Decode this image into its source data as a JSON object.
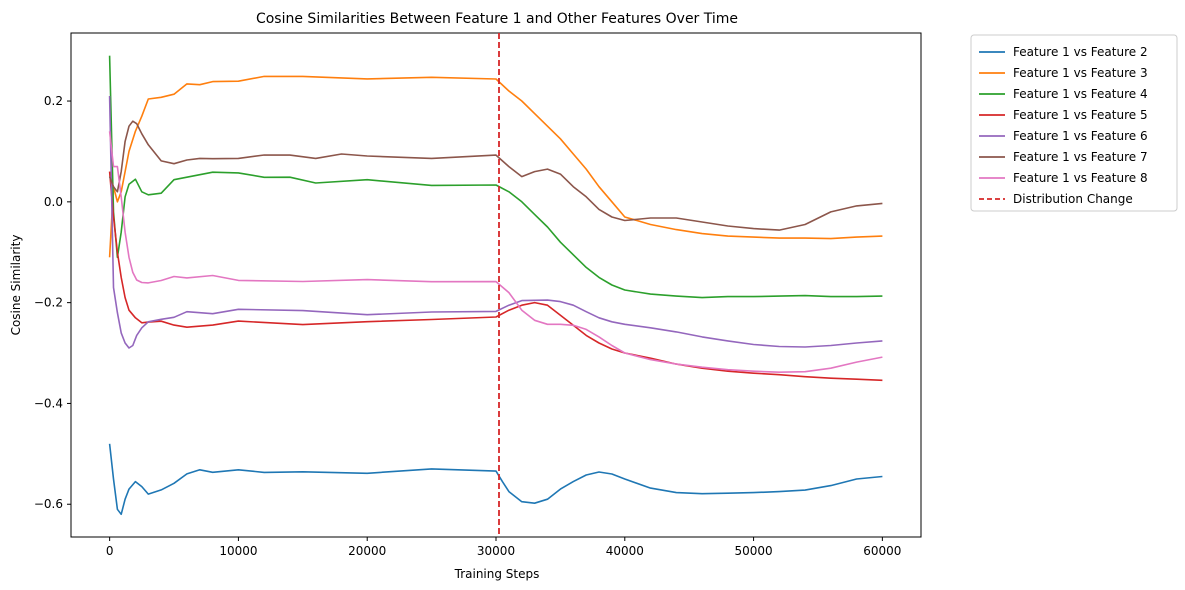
{
  "chart_data": {
    "type": "line",
    "title": "Cosine Similarities Between Feature 1 and Other Features Over Time",
    "xlabel": "Training Steps",
    "ylabel": "Cosine Similarity",
    "xlim": [
      -3000,
      63000
    ],
    "ylim": [
      -0.665,
      0.335
    ],
    "xticks": [
      0,
      10000,
      20000,
      30000,
      40000,
      50000,
      60000
    ],
    "xtick_labels": [
      "0",
      "10000",
      "20000",
      "30000",
      "40000",
      "50000",
      "60000"
    ],
    "yticks": [
      -0.6,
      -0.4,
      -0.2,
      0.0,
      0.2
    ],
    "ytick_labels": [
      "−0.6",
      "−0.4",
      "−0.2",
      "0.0",
      "0.2"
    ],
    "grid": false,
    "legend_position": "outside-top-right",
    "vline": {
      "x": 30000,
      "name": "Distribution Change",
      "color": "#d62728",
      "style": "dashed"
    },
    "series": [
      {
        "name": "Feature 1 vs Feature 2",
        "color": "#1f77b4",
        "x": [
          0,
          300,
          600,
          900,
          1200,
          1500,
          2000,
          2500,
          3000,
          4000,
          5000,
          6000,
          7000,
          8000,
          10000,
          12000,
          15000,
          20000,
          25000,
          30000,
          30500,
          31000,
          32000,
          33000,
          34000,
          35000,
          36000,
          37000,
          38000,
          39000,
          40000,
          42000,
          44000,
          46000,
          48000,
          50000,
          52000,
          54000,
          56000,
          58000,
          60000
        ],
        "y": [
          -0.48,
          -0.55,
          -0.61,
          -0.62,
          -0.59,
          -0.57,
          -0.555,
          -0.565,
          -0.58,
          -0.575,
          -0.555,
          -0.54,
          -0.535,
          -0.533,
          -0.535,
          -0.537,
          -0.536,
          -0.535,
          -0.533,
          -0.535,
          -0.555,
          -0.575,
          -0.595,
          -0.598,
          -0.59,
          -0.57,
          -0.555,
          -0.542,
          -0.536,
          -0.54,
          -0.55,
          -0.568,
          -0.577,
          -0.579,
          -0.578,
          -0.577,
          -0.575,
          -0.572,
          -0.563,
          -0.55,
          -0.545
        ]
      },
      {
        "name": "Feature 1 vs Feature 3",
        "color": "#ff7f0e",
        "x": [
          0,
          300,
          600,
          900,
          1200,
          1500,
          2000,
          2500,
          3000,
          4000,
          5000,
          6000,
          7000,
          8000,
          10000,
          12000,
          15000,
          20000,
          25000,
          30000,
          31000,
          32000,
          33000,
          34000,
          35000,
          36000,
          37000,
          38000,
          39000,
          40000,
          42000,
          44000,
          46000,
          48000,
          50000,
          52000,
          54000,
          56000,
          58000,
          60000
        ],
        "y": [
          -0.11,
          0.03,
          0.0,
          0.02,
          0.06,
          0.1,
          0.14,
          0.17,
          0.2,
          0.21,
          0.215,
          0.23,
          0.235,
          0.24,
          0.242,
          0.245,
          0.245,
          0.245,
          0.25,
          0.24,
          0.22,
          0.2,
          0.175,
          0.15,
          0.125,
          0.095,
          0.065,
          0.03,
          0.0,
          -0.03,
          -0.045,
          -0.055,
          -0.063,
          -0.068,
          -0.07,
          -0.072,
          -0.072,
          -0.073,
          -0.07,
          -0.068
        ]
      },
      {
        "name": "Feature 1 vs Feature 4",
        "color": "#2ca02c",
        "x": [
          0,
          300,
          600,
          900,
          1200,
          1500,
          2000,
          2500,
          3000,
          4000,
          5000,
          6000,
          8000,
          10000,
          12000,
          14000,
          16000,
          20000,
          25000,
          30000,
          31000,
          32000,
          33000,
          34000,
          35000,
          36000,
          37000,
          38000,
          39000,
          40000,
          42000,
          44000,
          46000,
          48000,
          50000,
          52000,
          54000,
          56000,
          58000,
          60000
        ],
        "y": [
          0.29,
          -0.02,
          -0.11,
          -0.06,
          0.01,
          0.035,
          0.045,
          0.02,
          0.015,
          0.02,
          0.04,
          0.05,
          0.055,
          0.06,
          0.05,
          0.045,
          0.04,
          0.04,
          0.035,
          0.035,
          0.02,
          0.0,
          -0.025,
          -0.05,
          -0.08,
          -0.105,
          -0.13,
          -0.15,
          -0.165,
          -0.175,
          -0.183,
          -0.187,
          -0.19,
          -0.188,
          -0.188,
          -0.187,
          -0.186,
          -0.188,
          -0.188,
          -0.187
        ]
      },
      {
        "name": "Feature 1 vs Feature 5",
        "color": "#d62728",
        "x": [
          0,
          300,
          600,
          900,
          1200,
          1500,
          2000,
          2500,
          3000,
          4000,
          5000,
          6000,
          8000,
          10000,
          15000,
          20000,
          25000,
          30000,
          31000,
          32000,
          33000,
          34000,
          35000,
          36000,
          37000,
          38000,
          39000,
          40000,
          42000,
          44000,
          46000,
          48000,
          50000,
          52000,
          54000,
          56000,
          58000,
          60000
        ],
        "y": [
          0.06,
          -0.03,
          -0.1,
          -0.15,
          -0.19,
          -0.215,
          -0.23,
          -0.24,
          -0.235,
          -0.24,
          -0.245,
          -0.245,
          -0.245,
          -0.24,
          -0.24,
          -0.238,
          -0.237,
          -0.225,
          -0.215,
          -0.205,
          -0.2,
          -0.205,
          -0.225,
          -0.245,
          -0.265,
          -0.28,
          -0.292,
          -0.3,
          -0.31,
          -0.322,
          -0.33,
          -0.336,
          -0.34,
          -0.343,
          -0.347,
          -0.35,
          -0.352,
          -0.354
        ]
      },
      {
        "name": "Feature 1 vs Feature 6",
        "color": "#9467bd",
        "x": [
          0,
          300,
          600,
          900,
          1200,
          1500,
          1800,
          2100,
          2500,
          3000,
          4000,
          5000,
          6000,
          8000,
          10000,
          15000,
          20000,
          25000,
          30000,
          31000,
          32000,
          34000,
          35000,
          36000,
          37000,
          38000,
          39000,
          40000,
          42000,
          44000,
          46000,
          48000,
          50000,
          52000,
          54000,
          56000,
          58000,
          60000
        ],
        "y": [
          0.21,
          -0.17,
          -0.22,
          -0.26,
          -0.28,
          -0.29,
          -0.285,
          -0.265,
          -0.25,
          -0.24,
          -0.235,
          -0.225,
          -0.22,
          -0.218,
          -0.215,
          -0.218,
          -0.22,
          -0.22,
          -0.22,
          -0.205,
          -0.196,
          -0.195,
          -0.198,
          -0.205,
          -0.218,
          -0.23,
          -0.238,
          -0.243,
          -0.25,
          -0.258,
          -0.268,
          -0.276,
          -0.283,
          -0.287,
          -0.288,
          -0.285,
          -0.28,
          -0.276
        ]
      },
      {
        "name": "Feature 1 vs Feature 7",
        "color": "#8c564b",
        "x": [
          0,
          300,
          600,
          900,
          1200,
          1500,
          1800,
          2100,
          2500,
          3000,
          4000,
          5000,
          6000,
          7000,
          8000,
          10000,
          12000,
          14000,
          16000,
          18000,
          20000,
          25000,
          30000,
          31000,
          32000,
          33000,
          34000,
          35000,
          36000,
          37000,
          38000,
          39000,
          40000,
          42000,
          44000,
          46000,
          48000,
          50000,
          52000,
          54000,
          56000,
          58000,
          60000
        ],
        "y": [
          0.05,
          0.03,
          0.02,
          0.06,
          0.12,
          0.15,
          0.16,
          0.155,
          0.135,
          0.11,
          0.085,
          0.075,
          0.08,
          0.09,
          0.085,
          0.09,
          0.09,
          0.092,
          0.09,
          0.092,
          0.09,
          0.09,
          0.09,
          0.07,
          0.05,
          0.06,
          0.065,
          0.055,
          0.03,
          0.01,
          -0.015,
          -0.03,
          -0.037,
          -0.032,
          -0.032,
          -0.04,
          -0.048,
          -0.053,
          -0.056,
          -0.045,
          -0.02,
          -0.008,
          -0.003
        ]
      },
      {
        "name": "Feature 1 vs Feature 8",
        "color": "#e377c2",
        "x": [
          0,
          300,
          600,
          900,
          1200,
          1500,
          1800,
          2100,
          2500,
          3000,
          4000,
          5000,
          6000,
          8000,
          10000,
          15000,
          20000,
          25000,
          30000,
          31000,
          32000,
          33000,
          34000,
          35000,
          36000,
          37000,
          38000,
          39000,
          40000,
          42000,
          44000,
          46000,
          48000,
          50000,
          52000,
          54000,
          56000,
          58000,
          60000
        ],
        "y": [
          0.14,
          0.07,
          0.07,
          0.01,
          -0.06,
          -0.11,
          -0.14,
          -0.155,
          -0.16,
          -0.158,
          -0.155,
          -0.152,
          -0.148,
          -0.15,
          -0.155,
          -0.155,
          -0.158,
          -0.158,
          -0.155,
          -0.18,
          -0.215,
          -0.235,
          -0.243,
          -0.243,
          -0.245,
          -0.253,
          -0.268,
          -0.285,
          -0.3,
          -0.313,
          -0.322,
          -0.328,
          -0.333,
          -0.336,
          -0.338,
          -0.337,
          -0.33,
          -0.318,
          -0.308
        ]
      }
    ]
  }
}
